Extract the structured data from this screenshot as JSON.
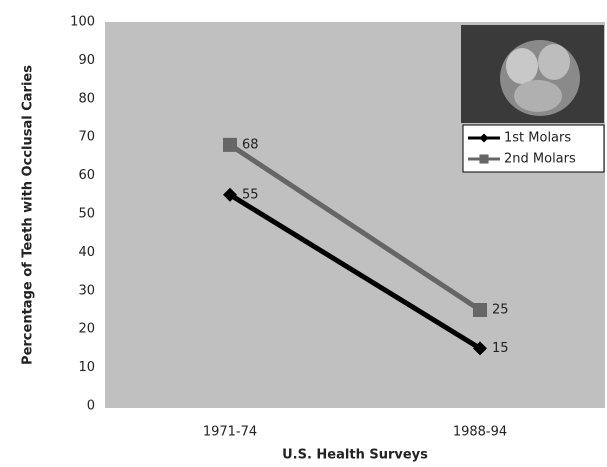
{
  "chart_data": {
    "type": "line",
    "xlabel": "U.S. Health Surveys",
    "ylabel": "Percentage of Teeth with Occlusal Caries",
    "categories": [
      "1971-74",
      "1988-94"
    ],
    "series": [
      {
        "name": "1st Molars",
        "color": "#000000",
        "marker": "diamond",
        "values": [
          55,
          15
        ]
      },
      {
        "name": "2nd Molars",
        "color": "#666666",
        "marker": "square",
        "values": [
          68,
          25
        ]
      }
    ],
    "ylim": [
      0,
      100
    ],
    "yticks": [
      0,
      10,
      20,
      30,
      40,
      50,
      60,
      70,
      80,
      90,
      100
    ],
    "grid": false,
    "legend": "upper right",
    "plot_background": "#c0c0c0"
  }
}
